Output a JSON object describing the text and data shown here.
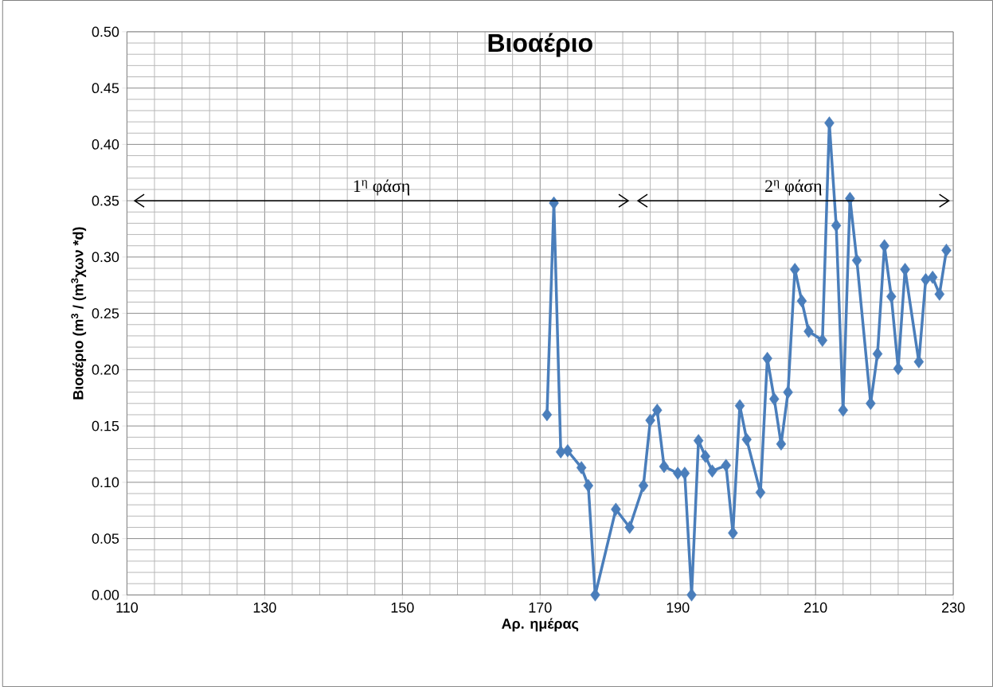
{
  "chart_data": {
    "type": "line",
    "title": "Βιοαέριο",
    "xlabel": "Αρ. ημέρας",
    "ylabel": "Βιοαέριο (m$^{3}$ / (m$^{3}$χων *d)",
    "xlim": [
      110,
      230
    ],
    "xticks": [
      110,
      130,
      150,
      170,
      190,
      210,
      230
    ],
    "ylim": [
      0,
      0.5
    ],
    "yticks": [
      {
        "value": 0,
        "label": "0.00"
      },
      {
        "value": 0.05,
        "label": "0.05"
      },
      {
        "value": 0.1,
        "label": "0.10"
      },
      {
        "value": 0.15,
        "label": "0.15"
      },
      {
        "value": 0.2,
        "label": "0.20"
      },
      {
        "value": 0.25,
        "label": "0.25"
      },
      {
        "value": 0.3,
        "label": "0.30"
      },
      {
        "value": 0.35,
        "label": "0.35"
      },
      {
        "value": 0.4,
        "label": "0.40"
      },
      {
        "value": 0.45,
        "label": "0.45"
      },
      {
        "value": 0.5,
        "label": "0.50"
      }
    ],
    "grid": true,
    "marker": "diamond",
    "line_style": "solid",
    "annotations": [
      "1$^{η}$ φάση",
      "2$^{η}$ φάση"
    ],
    "series": [
      {
        "color": "#4a7ebb",
        "x": [
          171,
          172,
          173,
          174,
          176,
          177,
          178,
          181,
          183,
          185,
          186,
          187,
          188,
          190,
          191,
          192,
          193,
          194,
          195,
          197,
          198,
          199,
          200,
          202,
          203,
          204,
          205,
          206,
          207,
          208,
          209,
          211,
          212,
          213,
          214,
          215,
          216,
          218,
          219,
          220,
          221,
          222,
          223,
          225,
          226,
          227,
          228,
          229
        ],
        "values": [
          0.16,
          0.348,
          0.127,
          0.128,
          0.113,
          0.097,
          0.0,
          0.076,
          0.06,
          0.097,
          0.155,
          0.164,
          0.114,
          0.108,
          0.108,
          0.0,
          0.137,
          0.123,
          0.11,
          0.115,
          0.055,
          0.168,
          0.138,
          0.091,
          0.21,
          0.174,
          0.134,
          0.18,
          0.289,
          0.261,
          0.234,
          0.226,
          0.419,
          0.328,
          0.164,
          0.352,
          0.297,
          0.17,
          0.214,
          0.31,
          0.265,
          0.201,
          0.289,
          0.207,
          0.28,
          0.282,
          0.267,
          0.306
        ]
      }
    ]
  }
}
